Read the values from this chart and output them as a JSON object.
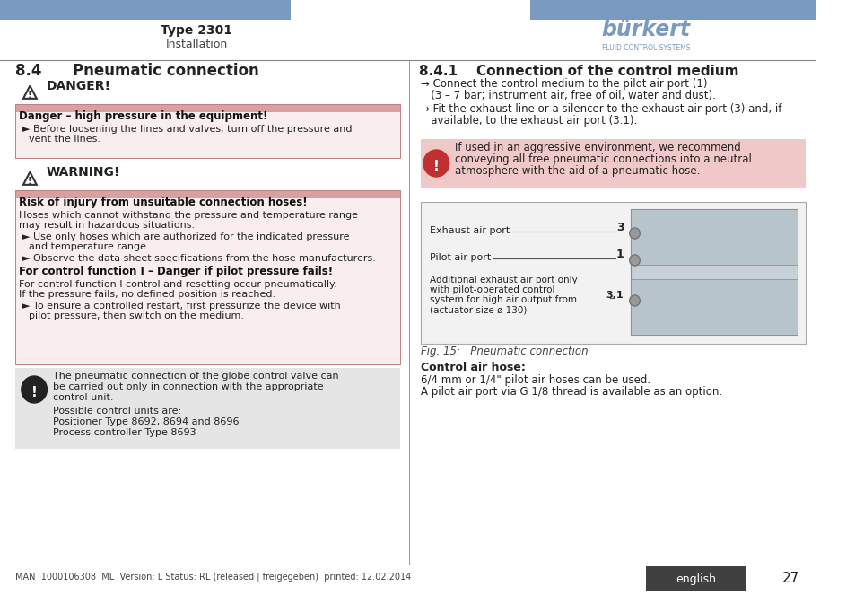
{
  "page_bg": "#ffffff",
  "header_bar_color": "#7a9bbf",
  "header_title": "Type 2301",
  "header_subtitle": "Installation",
  "section_title_left": "8.4      Pneumatic connection",
  "section_title_right": "8.4.1    Connection of the control medium",
  "danger_label": "DANGER!",
  "danger_bar_color": "#d9a0a0",
  "danger_title": "Danger – high pressure in the equipment!",
  "warning_label": "WARNING!",
  "warning_bar_color": "#d9a0a0",
  "warning_title": "Risk of injury from unsuitable connection hoses!",
  "warning_bold": "For control function I – Danger if pilot pressure fails!",
  "note_bg": "#e8e8e8",
  "right_arrow1_line1": "→ Connect the control medium to the pilot air port (1)",
  "right_arrow1_line2": "   (3 – 7 bar; instrument air, free of oil, water and dust).",
  "right_arrow2_line1": "→ Fit the exhaust line or a silencer to the exhaust air port (3) and, if",
  "right_arrow2_line2": "   available, to the exhaust air port (3.1).",
  "info_text1": "If used in an aggressive environment, we recommend",
  "info_text2": "conveying all free pneumatic connections into a neutral",
  "info_text3": "atmosphere with the aid of a pneumatic hose.",
  "fig_caption": "Fig. 15:   Pneumatic connection",
  "control_air_title": "Control air hose:",
  "control_air_line1": "6/4 mm or 1/4\" pilot air hoses can be used.",
  "control_air_line2": "A pilot air port via G 1/8 thread is available as an option.",
  "footer_text": "MAN  1000106308  ML  Version: L Status: RL (released | freigegeben)  printed: 12.02.2014",
  "footer_lang": "english",
  "footer_page": "27",
  "footer_lang_bg": "#404040",
  "divider_color": "#888888"
}
